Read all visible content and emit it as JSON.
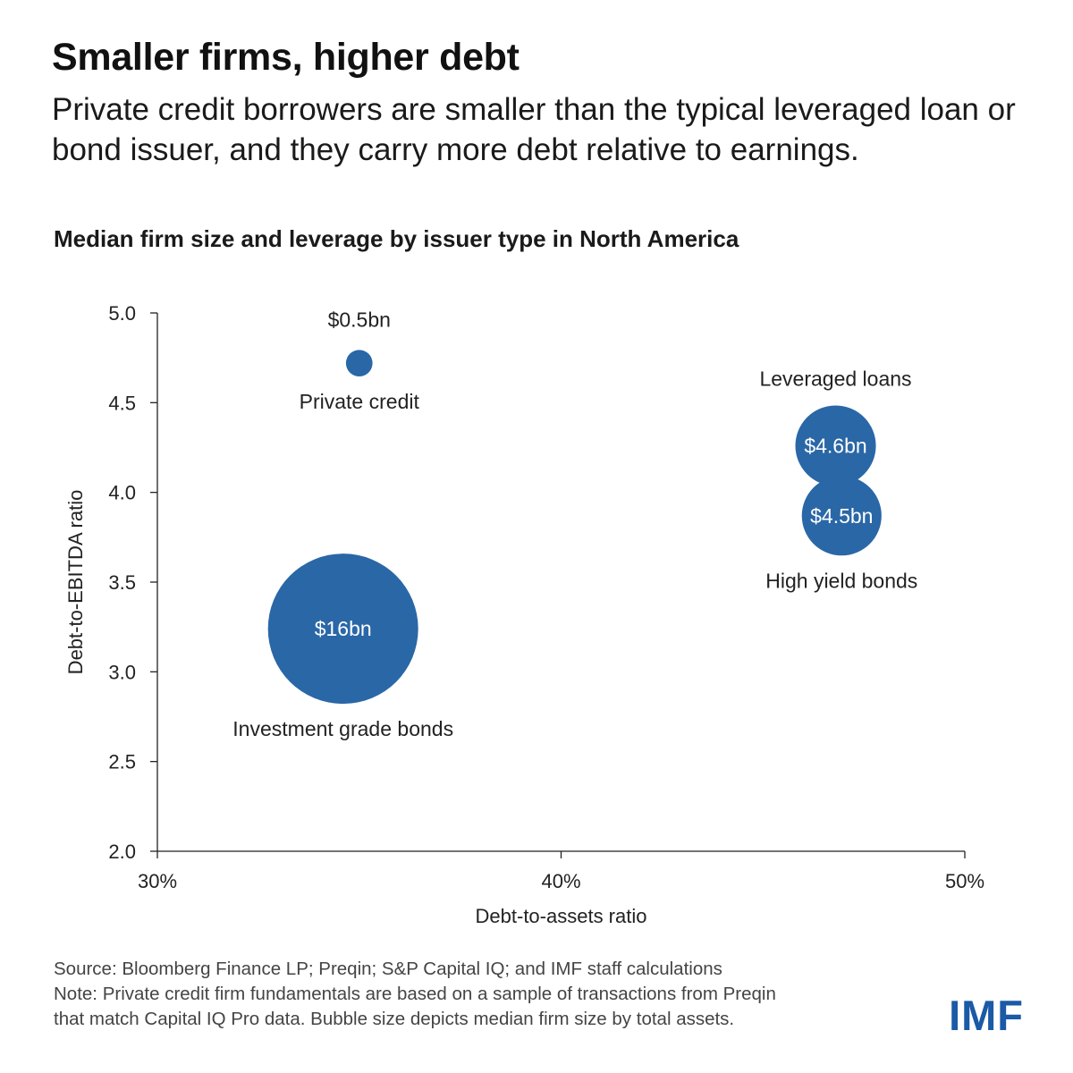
{
  "header": {
    "title": "Smaller firms, higher debt",
    "subtitle": "Private credit borrowers are smaller than the typical leveraged loan or bond issuer, and they carry more debt relative to earnings."
  },
  "chart_data": {
    "type": "scatter",
    "title": "Median firm size and leverage by issuer type in North America",
    "xlabel": "Debt-to-assets ratio",
    "ylabel": "Debt-to-EBITDA ratio",
    "xlim": [
      30,
      50
    ],
    "ylim": [
      2.0,
      5.0
    ],
    "x_ticks": [
      30,
      40,
      50
    ],
    "x_tick_labels": [
      "30%",
      "40%",
      "50%"
    ],
    "y_ticks": [
      2.0,
      2.5,
      3.0,
      3.5,
      4.0,
      4.5,
      5.0
    ],
    "y_tick_labels": [
      "2.0",
      "2.5",
      "3.0",
      "3.5",
      "4.0",
      "4.5",
      "5.0"
    ],
    "grid": false,
    "bubble_color": "#2a67a6",
    "points": [
      {
        "name": "Private credit",
        "x": 35.0,
        "y": 4.72,
        "size_bn": 0.5,
        "size_label": "$0.5bn"
      },
      {
        "name": "Investment grade bonds",
        "x": 34.6,
        "y": 3.24,
        "size_bn": 16,
        "size_label": "$16bn"
      },
      {
        "name": "Leveraged loans",
        "x": 46.8,
        "y": 4.26,
        "size_bn": 4.6,
        "size_label": "$4.6bn"
      },
      {
        "name": "High yield bonds",
        "x": 46.95,
        "y": 3.87,
        "size_bn": 4.5,
        "size_label": "$4.5bn"
      }
    ]
  },
  "footer": {
    "source": "Source: Bloomberg Finance LP; Preqin; S&P Capital IQ; and IMF staff calculations",
    "note_line1": "Note: Private credit firm fundamentals are based on a sample of transactions from Preqin",
    "note_line2": "that match Capital IQ Pro data. Bubble size depicts median firm size by total assets.",
    "logo": "IMF"
  }
}
